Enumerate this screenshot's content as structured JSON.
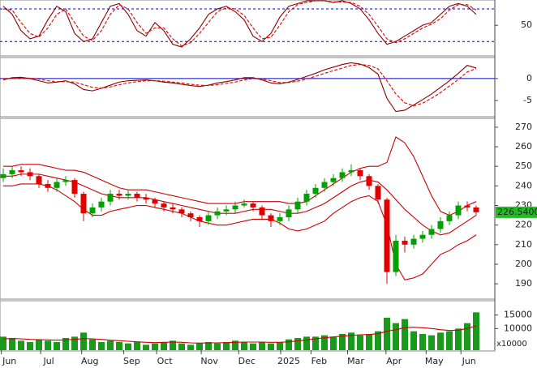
{
  "chart_data": [
    {
      "type": "line",
      "ylim": [
        -5,
        95
      ],
      "yticks": [
        50
      ],
      "levels": [
        20,
        80
      ],
      "level_color": "#0000cc",
      "level_dashed": true,
      "series": [
        {
          "color": "#8b0000",
          "dashed": false,
          "values": [
            85,
            70,
            40,
            25,
            30,
            60,
            85,
            75,
            35,
            20,
            25,
            55,
            85,
            90,
            70,
            40,
            30,
            55,
            40,
            15,
            10,
            25,
            45,
            70,
            80,
            85,
            75,
            60,
            30,
            20,
            35,
            65,
            85,
            90,
            95,
            95,
            95,
            92,
            95,
            90,
            80,
            60,
            35,
            15,
            20,
            30,
            40,
            50,
            55,
            70,
            85,
            90,
            85,
            70
          ]
        },
        {
          "color": "#e00000",
          "dashed": true,
          "values": [
            80,
            78,
            55,
            35,
            28,
            45,
            70,
            80,
            55,
            30,
            22,
            40,
            70,
            88,
            80,
            55,
            35,
            45,
            45,
            25,
            12,
            18,
            35,
            55,
            75,
            82,
            80,
            68,
            45,
            25,
            28,
            50,
            75,
            88,
            92,
            95,
            95,
            93,
            93,
            92,
            85,
            70,
            48,
            25,
            18,
            25,
            35,
            45,
            52,
            62,
            78,
            88,
            88,
            78
          ]
        }
      ]
    },
    {
      "type": "line",
      "ylim": [
        -8.5,
        4.6
      ],
      "yticks": [
        0,
        -5
      ],
      "levels": [
        0
      ],
      "level_color": "#0000cc",
      "level_dashed": false,
      "series": [
        {
          "color": "#8b0000",
          "dashed": false,
          "values": [
            -0.3,
            0.2,
            0.3,
            0,
            -0.5,
            -1,
            -0.8,
            -0.5,
            -1.2,
            -2.5,
            -2.8,
            -2.2,
            -1.5,
            -0.8,
            -0.5,
            -0.4,
            -0.3,
            -0.5,
            -0.8,
            -1.0,
            -1.3,
            -1.6,
            -1.8,
            -1.5,
            -1.0,
            -0.7,
            -0.3,
            0.2,
            0.2,
            -0.3,
            -1.0,
            -1.2,
            -0.8,
            -0.2,
            0.5,
            1.2,
            2.0,
            2.6,
            3.2,
            3.6,
            3.3,
            2.5,
            1.0,
            -4.5,
            -7.5,
            -7.2,
            -6.0,
            -4.8,
            -3.5,
            -2.0,
            -0.5,
            1.2,
            3.0,
            2.4
          ]
        },
        {
          "color": "#e00000",
          "dashed": true,
          "values": [
            0,
            0,
            0.1,
            0.1,
            -0.1,
            -0.5,
            -0.7,
            -0.7,
            -0.8,
            -1.4,
            -2.0,
            -2.2,
            -1.9,
            -1.4,
            -1.0,
            -0.7,
            -0.5,
            -0.5,
            -0.6,
            -0.8,
            -1.0,
            -1.3,
            -1.5,
            -1.6,
            -1.4,
            -1.1,
            -0.8,
            -0.3,
            0,
            -0.1,
            -0.5,
            -0.9,
            -0.9,
            -0.6,
            -0.1,
            0.5,
            1.2,
            1.8,
            2.4,
            3.0,
            3.2,
            3.0,
            2.2,
            -0.5,
            -3.5,
            -5.5,
            -6.2,
            -5.6,
            -4.5,
            -3.2,
            -1.7,
            -0.2,
            1.5,
            2.3
          ]
        }
      ]
    },
    {
      "type": "candlestick",
      "ylim": [
        182.6,
        274.1
      ],
      "yticks": [
        190,
        200,
        210,
        220,
        230,
        240,
        250,
        260,
        270
      ],
      "up_color": "#00a000",
      "down_color": "#e00000",
      "open": [
        244,
        246,
        248,
        247,
        245,
        241,
        239,
        242,
        243,
        236,
        226,
        229,
        232,
        236,
        235,
        236,
        234,
        233,
        231,
        229,
        228,
        226,
        224,
        222,
        225,
        227,
        228,
        230,
        231,
        229,
        225,
        222,
        224,
        228,
        232,
        236,
        239,
        242,
        244,
        247,
        248,
        245,
        240,
        233,
        196,
        212,
        210,
        213,
        215,
        218,
        222,
        225,
        230,
        229
      ],
      "high": [
        249,
        250,
        250,
        249,
        246,
        243,
        244,
        245,
        244,
        237,
        231,
        234,
        238,
        238,
        238,
        237,
        236,
        234,
        232,
        231,
        229,
        227,
        225,
        227,
        229,
        230,
        232,
        233,
        232,
        230,
        226,
        226,
        230,
        234,
        238,
        241,
        244,
        246,
        249,
        251,
        249,
        246,
        241,
        234,
        215,
        214,
        215,
        217,
        220,
        224,
        227,
        232,
        232,
        230
      ],
      "low": [
        242,
        244,
        245,
        243,
        239,
        237,
        237,
        240,
        234,
        222,
        224,
        227,
        230,
        233,
        233,
        232,
        231,
        229,
        227,
        226,
        224,
        222,
        219,
        220,
        223,
        225,
        226,
        229,
        227,
        223,
        219,
        220,
        222,
        226,
        230,
        234,
        237,
        240,
        242,
        245,
        243,
        238,
        231,
        190,
        194,
        206,
        208,
        211,
        213,
        216,
        220,
        223,
        227,
        225
      ],
      "close": [
        246,
        248,
        247,
        245,
        241,
        239,
        242,
        243,
        236,
        226,
        229,
        232,
        236,
        235,
        236,
        234,
        233,
        231,
        229,
        228,
        226,
        224,
        222,
        225,
        227,
        228,
        230,
        231,
        229,
        225,
        222,
        224,
        228,
        232,
        236,
        239,
        242,
        244,
        247,
        248,
        245,
        240,
        233,
        196,
        212,
        210,
        213,
        215,
        218,
        222,
        225,
        230,
        229,
        226.54
      ],
      "bands": [
        {
          "color": "#cc0000",
          "values": [
            250,
            250,
            251,
            251,
            251,
            250,
            249,
            248,
            248,
            247,
            245,
            243,
            241,
            239,
            238,
            238,
            238,
            237,
            236,
            235,
            234,
            233,
            232,
            231,
            231,
            231,
            231,
            232,
            232,
            232,
            232,
            232,
            231,
            231,
            232,
            235,
            238,
            241,
            244,
            247,
            249,
            250,
            250,
            252,
            265,
            262,
            255,
            245,
            235,
            227,
            225,
            227,
            230,
            232
          ]
        },
        {
          "color": "#cc0000",
          "values": [
            245,
            245,
            246,
            246,
            246,
            245,
            244,
            243,
            242,
            240,
            238,
            236,
            235,
            234,
            234,
            234,
            234,
            233,
            232,
            231,
            230,
            229,
            228,
            227,
            226,
            226,
            226,
            227,
            228,
            228,
            228,
            227,
            226,
            226,
            227,
            229,
            231,
            234,
            237,
            240,
            242,
            243,
            242,
            238,
            233,
            228,
            224,
            220,
            217,
            215,
            216,
            219,
            222,
            225
          ]
        },
        {
          "color": "#cc0000",
          "values": [
            240,
            240,
            241,
            241,
            241,
            240,
            238,
            235,
            232,
            228,
            225,
            225,
            227,
            228,
            229,
            230,
            230,
            229,
            228,
            227,
            226,
            224,
            222,
            221,
            220,
            220,
            221,
            222,
            223,
            223,
            223,
            221,
            218,
            217,
            218,
            220,
            222,
            226,
            229,
            232,
            234,
            235,
            232,
            220,
            200,
            192,
            193,
            195,
            200,
            205,
            207,
            210,
            212,
            215
          ]
        }
      ],
      "last": {
        "value": 226.54,
        "label": "226.5400"
      },
      "last_color": "#22bb22"
    },
    {
      "type": "bar",
      "ylim": [
        2000,
        20000
      ],
      "yticks": [
        10000,
        15000
      ],
      "unit_label": "x10000",
      "color": "#1a9a1a",
      "values": [
        7000,
        6500,
        5500,
        5000,
        6000,
        5500,
        5000,
        6500,
        7000,
        8500,
        6000,
        5000,
        5500,
        5000,
        4500,
        5000,
        4000,
        4500,
        5000,
        5500,
        4500,
        4000,
        4500,
        5000,
        4500,
        5000,
        5500,
        5000,
        4500,
        5000,
        4500,
        5000,
        6000,
        6500,
        7000,
        7000,
        7500,
        7000,
        8000,
        8500,
        7500,
        8000,
        9000,
        14000,
        12000,
        13500,
        9000,
        8000,
        7500,
        8500,
        9000,
        10000,
        12000,
        16000
      ],
      "ma": {
        "color": "#cc0000",
        "values": [
          6200,
          6300,
          6200,
          6000,
          5900,
          5800,
          5700,
          5800,
          6000,
          6300,
          6200,
          6000,
          5700,
          5500,
          5300,
          5100,
          4900,
          4800,
          4900,
          5000,
          4900,
          4700,
          4600,
          4700,
          4700,
          4800,
          4900,
          5000,
          5000,
          5000,
          4900,
          4900,
          5100,
          5400,
          5800,
          6200,
          6600,
          6900,
          7200,
          7500,
          7700,
          7800,
          8100,
          9000,
          9600,
          10300,
          10500,
          10300,
          10000,
          9600,
          9300,
          9400,
          10000,
          11000
        ]
      },
      "xticks": [
        {
          "value": 0.7,
          "label": "Jun"
        },
        {
          "value": 5.1,
          "label": "Jul"
        },
        {
          "value": 9.7,
          "label": "Aug"
        },
        {
          "value": 14.4,
          "label": "Sep"
        },
        {
          "value": 18.1,
          "label": "Oct"
        },
        {
          "value": 23.1,
          "label": "Nov"
        },
        {
          "value": 27.3,
          "label": "Dec"
        },
        {
          "value": 32,
          "label": "2025"
        },
        {
          "value": 35.4,
          "label": "Feb"
        },
        {
          "value": 39.5,
          "label": "Mar"
        },
        {
          "value": 43.8,
          "label": "Apr"
        },
        {
          "value": 48.3,
          "label": "May"
        },
        {
          "value": 52.2,
          "label": "Jun"
        }
      ]
    }
  ]
}
